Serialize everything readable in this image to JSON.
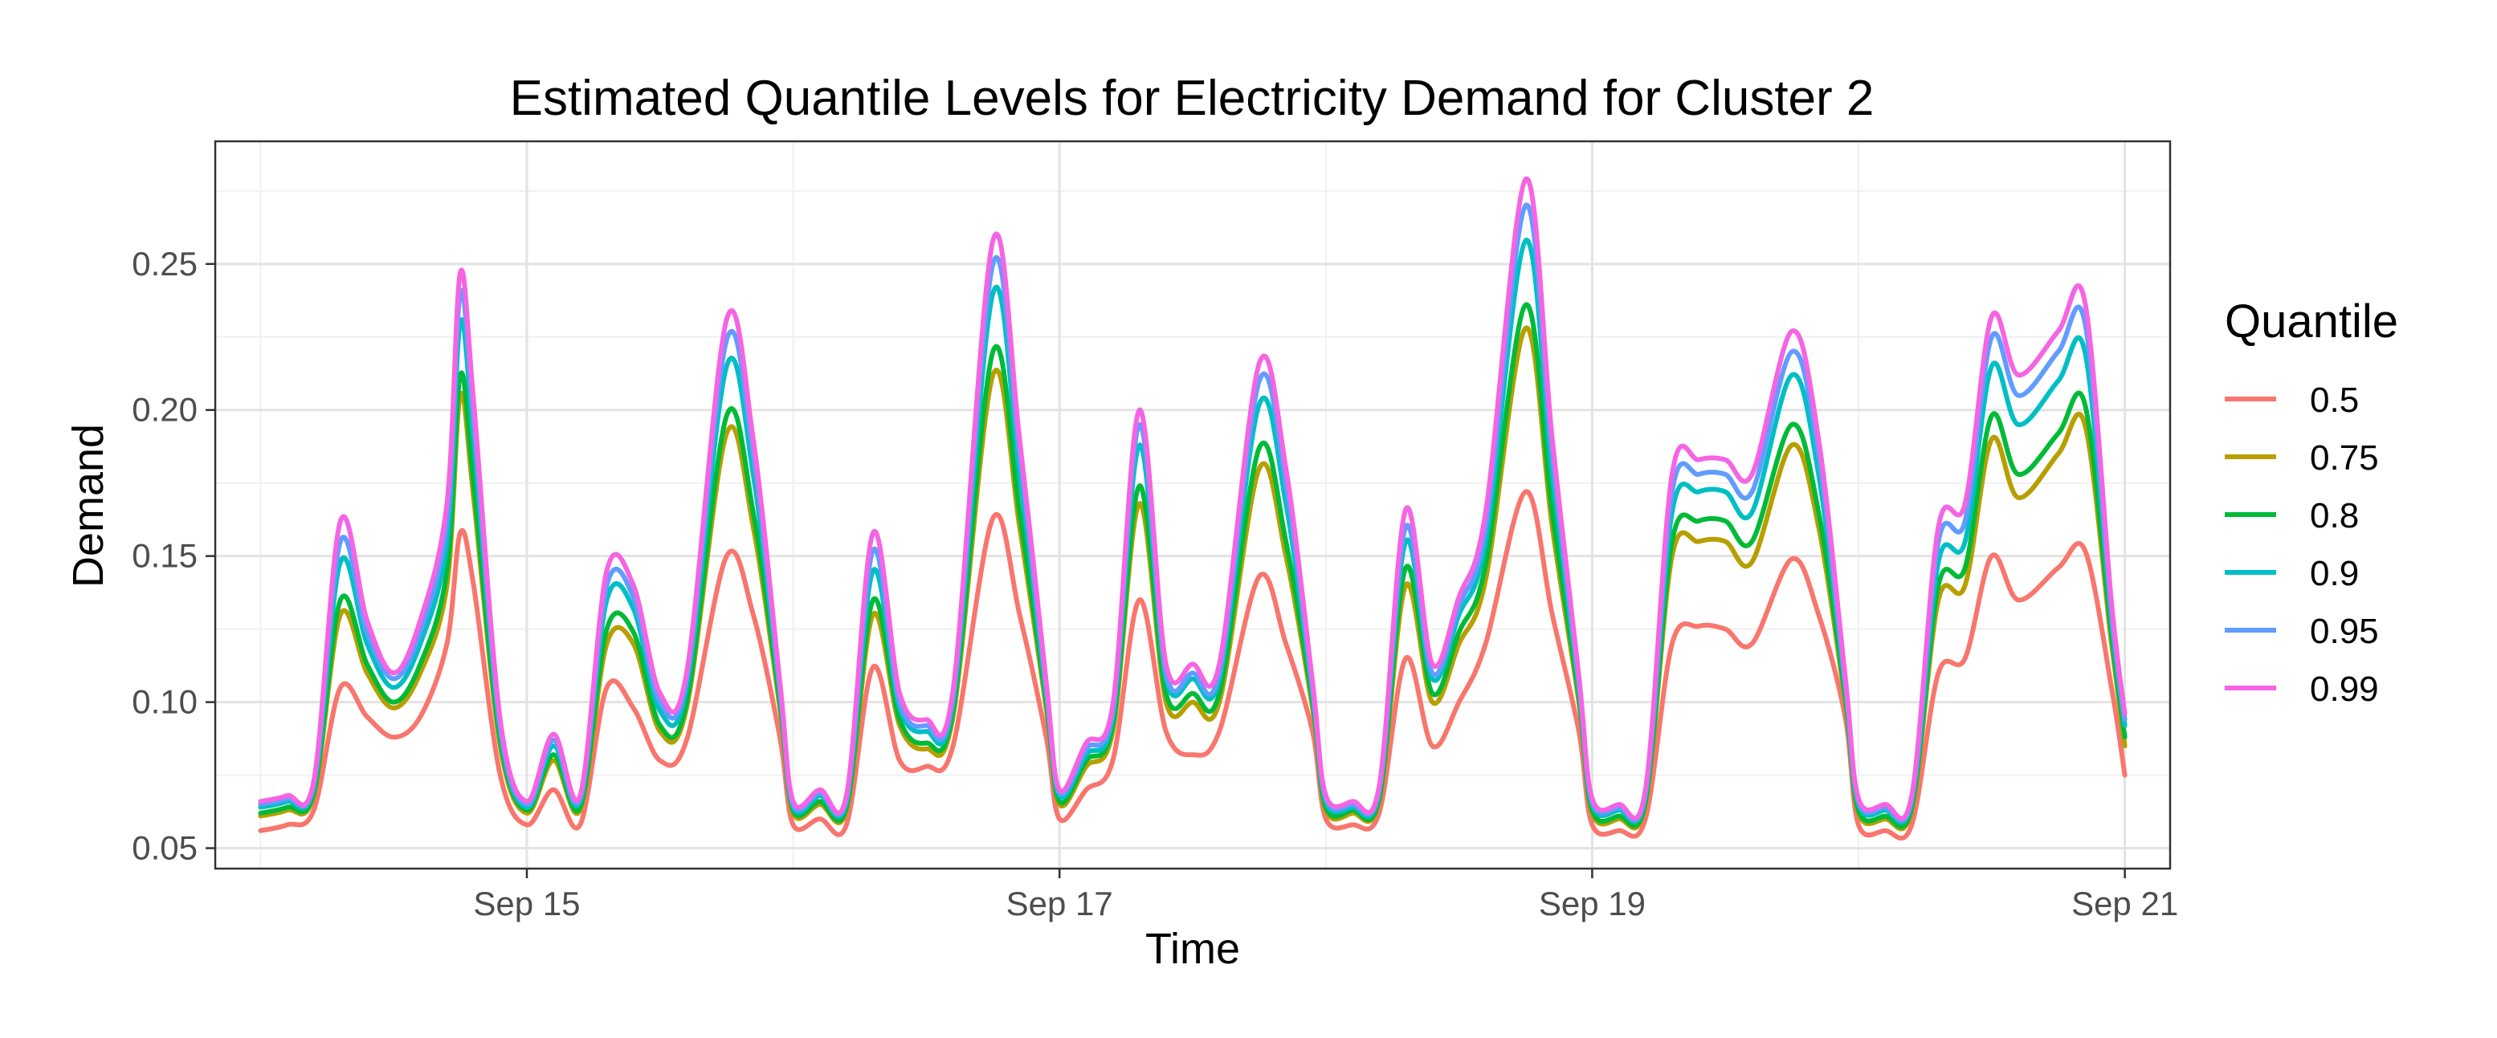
{
  "chart_data": {
    "type": "line",
    "title": "Estimated Quantile Levels for Electricity Demand for Cluster 2",
    "xlabel": "Time",
    "ylabel": "Demand",
    "x_ticks": [
      "Sep 15",
      "Sep 17",
      "Sep 19",
      "Sep 21"
    ],
    "y_ticks": [
      "0.05",
      "0.10",
      "0.15",
      "0.20",
      "0.25"
    ],
    "ylim": [
      0.043,
      0.292
    ],
    "x_days": [
      14.0,
      14.1,
      14.2,
      14.3,
      14.4,
      14.5,
      14.6,
      14.7,
      14.75,
      14.8,
      14.9,
      15.0,
      15.1,
      15.2,
      15.3,
      15.4,
      15.5,
      15.6,
      15.75,
      15.85,
      15.95,
      16.0,
      16.1,
      16.2,
      16.3,
      16.4,
      16.5,
      16.6,
      16.75,
      16.85,
      16.95,
      17.0,
      17.1,
      17.2,
      17.3,
      17.4,
      17.5,
      17.6,
      17.75,
      17.85,
      17.95,
      18.0,
      18.1,
      18.2,
      18.3,
      18.4,
      18.5,
      18.6,
      18.75,
      18.85,
      18.95,
      19.0,
      19.1,
      19.2,
      19.3,
      19.4,
      19.5,
      19.6,
      19.75,
      19.85,
      19.95,
      20.0,
      20.1,
      20.2,
      20.3,
      20.4,
      20.5,
      20.6,
      20.75,
      20.85,
      20.95,
      21.0
    ],
    "legend": {
      "title": "Quantile",
      "position": "right"
    },
    "grid": true,
    "series": [
      {
        "name": "0.5",
        "color": "#F8766D",
        "values": [
          0.056,
          0.058,
          0.063,
          0.105,
          0.095,
          0.088,
          0.095,
          0.12,
          0.158,
          0.14,
          0.075,
          0.058,
          0.07,
          0.058,
          0.105,
          0.098,
          0.08,
          0.087,
          0.15,
          0.13,
          0.088,
          0.058,
          0.06,
          0.058,
          0.112,
          0.08,
          0.078,
          0.085,
          0.163,
          0.13,
          0.088,
          0.06,
          0.07,
          0.08,
          0.135,
          0.09,
          0.082,
          0.09,
          0.143,
          0.12,
          0.09,
          0.06,
          0.058,
          0.062,
          0.115,
          0.085,
          0.1,
          0.12,
          0.172,
          0.13,
          0.09,
          0.058,
          0.056,
          0.06,
          0.12,
          0.126,
          0.125,
          0.12,
          0.149,
          0.13,
          0.095,
          0.058,
          0.056,
          0.058,
          0.11,
          0.115,
          0.15,
          0.135,
          0.146,
          0.152,
          0.105,
          0.075
        ]
      },
      {
        "name": "0.75",
        "color": "#B79F00",
        "values": [
          0.061,
          0.063,
          0.068,
          0.13,
          0.11,
          0.098,
          0.11,
          0.14,
          0.205,
          0.17,
          0.085,
          0.062,
          0.08,
          0.063,
          0.12,
          0.12,
          0.09,
          0.098,
          0.192,
          0.16,
          0.098,
          0.062,
          0.065,
          0.063,
          0.13,
          0.092,
          0.084,
          0.095,
          0.212,
          0.16,
          0.098,
          0.065,
          0.078,
          0.09,
          0.168,
          0.1,
          0.1,
          0.1,
          0.18,
          0.15,
          0.098,
          0.063,
          0.062,
          0.066,
          0.14,
          0.1,
          0.12,
          0.142,
          0.228,
          0.16,
          0.1,
          0.062,
          0.06,
          0.065,
          0.15,
          0.155,
          0.155,
          0.148,
          0.188,
          0.16,
          0.1,
          0.062,
          0.06,
          0.063,
          0.135,
          0.14,
          0.19,
          0.17,
          0.185,
          0.195,
          0.12,
          0.085
        ]
      },
      {
        "name": "0.8",
        "color": "#00BA38",
        "values": [
          0.062,
          0.064,
          0.069,
          0.135,
          0.113,
          0.1,
          0.113,
          0.145,
          0.212,
          0.175,
          0.087,
          0.063,
          0.082,
          0.064,
          0.125,
          0.124,
          0.092,
          0.1,
          0.198,
          0.165,
          0.1,
          0.063,
          0.066,
          0.064,
          0.135,
          0.094,
          0.086,
          0.097,
          0.22,
          0.165,
          0.1,
          0.066,
          0.08,
          0.092,
          0.174,
          0.103,
          0.103,
          0.103,
          0.187,
          0.155,
          0.1,
          0.064,
          0.063,
          0.067,
          0.146,
          0.103,
          0.124,
          0.147,
          0.236,
          0.165,
          0.102,
          0.063,
          0.061,
          0.066,
          0.155,
          0.162,
          0.162,
          0.155,
          0.195,
          0.165,
          0.102,
          0.063,
          0.061,
          0.064,
          0.14,
          0.146,
          0.198,
          0.178,
          0.192,
          0.202,
          0.123,
          0.088
        ]
      },
      {
        "name": "0.9",
        "color": "#00BFC4",
        "values": [
          0.064,
          0.066,
          0.071,
          0.148,
          0.12,
          0.105,
          0.12,
          0.155,
          0.23,
          0.19,
          0.09,
          0.064,
          0.085,
          0.066,
          0.135,
          0.132,
          0.097,
          0.105,
          0.215,
          0.178,
          0.103,
          0.064,
          0.068,
          0.066,
          0.145,
          0.098,
          0.09,
          0.1,
          0.24,
          0.178,
          0.103,
          0.068,
          0.082,
          0.095,
          0.188,
          0.108,
          0.108,
          0.108,
          0.202,
          0.168,
          0.103,
          0.066,
          0.064,
          0.069,
          0.155,
          0.108,
          0.13,
          0.155,
          0.258,
          0.178,
          0.105,
          0.065,
          0.063,
          0.068,
          0.165,
          0.172,
          0.172,
          0.165,
          0.212,
          0.178,
          0.105,
          0.065,
          0.063,
          0.066,
          0.148,
          0.155,
          0.215,
          0.195,
          0.21,
          0.22,
          0.128,
          0.092
        ]
      },
      {
        "name": "0.95",
        "color": "#619CFF",
        "values": [
          0.065,
          0.067,
          0.072,
          0.155,
          0.124,
          0.108,
          0.124,
          0.162,
          0.24,
          0.197,
          0.092,
          0.065,
          0.087,
          0.067,
          0.14,
          0.136,
          0.1,
          0.108,
          0.224,
          0.185,
          0.105,
          0.065,
          0.069,
          0.067,
          0.152,
          0.1,
          0.092,
          0.102,
          0.25,
          0.185,
          0.105,
          0.069,
          0.084,
          0.097,
          0.195,
          0.11,
          0.11,
          0.11,
          0.21,
          0.175,
          0.105,
          0.067,
          0.065,
          0.07,
          0.16,
          0.11,
          0.133,
          0.16,
          0.27,
          0.185,
          0.107,
          0.066,
          0.064,
          0.069,
          0.172,
          0.178,
          0.178,
          0.172,
          0.22,
          0.185,
          0.107,
          0.066,
          0.064,
          0.067,
          0.155,
          0.162,
          0.225,
          0.205,
          0.22,
          0.23,
          0.131,
          0.094
        ]
      },
      {
        "name": "0.99",
        "color": "#F564E3",
        "values": [
          0.066,
          0.068,
          0.073,
          0.162,
          0.128,
          0.11,
          0.128,
          0.168,
          0.247,
          0.203,
          0.094,
          0.066,
          0.089,
          0.068,
          0.145,
          0.14,
          0.103,
          0.11,
          0.231,
          0.19,
          0.107,
          0.066,
          0.07,
          0.068,
          0.158,
          0.103,
          0.094,
          0.104,
          0.258,
          0.19,
          0.107,
          0.07,
          0.086,
          0.099,
          0.2,
          0.113,
          0.113,
          0.113,
          0.216,
          0.18,
          0.107,
          0.068,
          0.066,
          0.071,
          0.166,
          0.113,
          0.136,
          0.165,
          0.279,
          0.19,
          0.109,
          0.067,
          0.065,
          0.07,
          0.178,
          0.183,
          0.183,
          0.178,
          0.227,
          0.19,
          0.109,
          0.067,
          0.065,
          0.068,
          0.16,
          0.168,
          0.232,
          0.212,
          0.227,
          0.237,
          0.134,
          0.096
        ]
      }
    ]
  }
}
